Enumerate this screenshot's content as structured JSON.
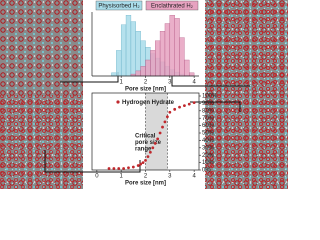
{
  "chart_data": [
    {
      "type": "histogram",
      "xlabel": "Pore size [nm]",
      "xlim": [
        -0.2,
        4.2
      ],
      "xticks": [
        1,
        2,
        3,
        4
      ],
      "ylim": [
        0,
        100
      ],
      "bins": [
        0.6,
        0.8,
        1.0,
        1.2,
        1.4,
        1.6,
        1.8,
        2.0,
        2.2,
        2.4,
        2.6,
        2.8,
        3.0,
        3.2,
        3.4,
        3.6,
        3.8,
        4.0
      ],
      "series": [
        {
          "name": "Physisorbed H₂",
          "color": "#a9dcea",
          "values": [
            5,
            40,
            80,
            95,
            85,
            70,
            55,
            45,
            35,
            28,
            22,
            15,
            10,
            6,
            3,
            1,
            0
          ]
        },
        {
          "name": "Enclathrated H₂",
          "color": "#e7a2c0",
          "values": [
            0,
            0,
            0,
            0,
            3,
            8,
            15,
            25,
            40,
            55,
            70,
            82,
            95,
            90,
            60,
            25,
            5
          ]
        }
      ]
    },
    {
      "type": "scatter",
      "xlabel": "Pore size [nm]",
      "xlim": [
        -0.2,
        4.2
      ],
      "xticks": [
        0,
        1,
        2,
        3,
        4
      ],
      "ylim": [
        0,
        100
      ],
      "yticks": [
        {
          "value": 0,
          "label": "0%"
        },
        {
          "value": 10,
          "label": "10%"
        },
        {
          "value": 20,
          "label": "20%"
        },
        {
          "value": 30,
          "label": "30%"
        },
        {
          "value": 40,
          "label": "40%"
        },
        {
          "value": 50,
          "label": "50%"
        },
        {
          "value": 60,
          "label": "60%"
        },
        {
          "value": 70,
          "label": "70%"
        },
        {
          "value": 80,
          "label": "80%"
        },
        {
          "value": 90,
          "label": "90%"
        },
        {
          "value": 100,
          "label": "100%"
        }
      ],
      "shaded_range": [
        2.0,
        2.9
      ],
      "annotation": [
        "Critical",
        "pore size",
        "range"
      ],
      "series": [
        {
          "name": "Hydrogen Hydrate",
          "color": "#c0282d",
          "x": [
            0.5,
            0.7,
            0.9,
            1.1,
            1.3,
            1.5,
            1.7,
            1.8,
            1.9,
            2.0,
            2.1,
            2.2,
            2.3,
            2.4,
            2.5,
            2.6,
            2.7,
            2.8,
            2.9,
            3.0,
            3.2,
            3.4,
            3.6,
            3.8,
            4.0
          ],
          "values": [
            2,
            2,
            2,
            2,
            3,
            4,
            6,
            8,
            10,
            13,
            18,
            24,
            30,
            36,
            42,
            50,
            58,
            65,
            72,
            78,
            82,
            85,
            87,
            89,
            91
          ]
        }
      ]
    }
  ]
}
